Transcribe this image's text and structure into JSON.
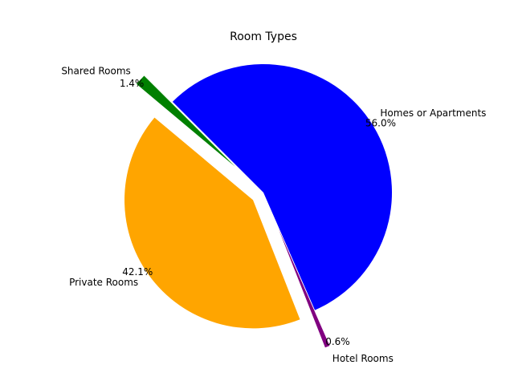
{
  "chart_data": {
    "type": "pie",
    "title": "Room Types",
    "slices": [
      {
        "label": "Homes or Apartments",
        "value": 56.0,
        "pct_label": "56.0%",
        "color": "#0000ff",
        "explode": 0.0
      },
      {
        "label": "Hotel Rooms",
        "value": 0.6,
        "pct_label": "0.6%",
        "color": "#800080",
        "explode": 0.3
      },
      {
        "label": "Private Rooms",
        "value": 42.1,
        "pct_label": "42.1%",
        "color": "#ffa500",
        "explode": 0.1
      },
      {
        "label": "Shared Rooms",
        "value": 1.4,
        "pct_label": "1.4%",
        "color": "#008000",
        "explode": 0.3
      }
    ],
    "start_angle_deg": 135,
    "direction": "clockwise",
    "legend": "none"
  }
}
